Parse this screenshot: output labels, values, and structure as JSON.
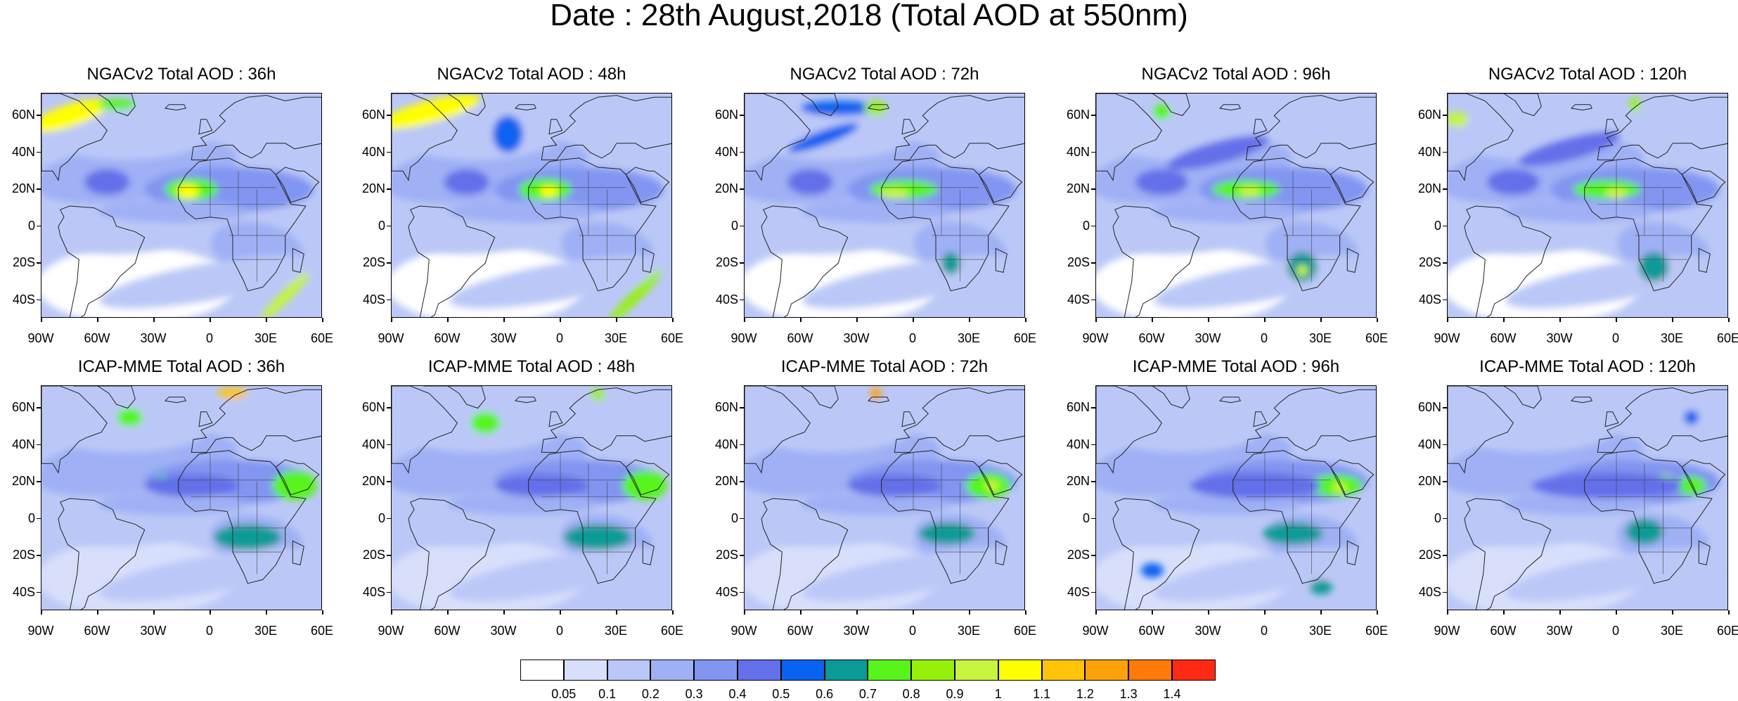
{
  "title": "Date : 28th August,2018 (Total AOD at 550nm)",
  "map_extent": {
    "lon_range": [
      -90,
      60
    ],
    "lat_range": [
      -50,
      72
    ]
  },
  "x_ticks": [
    {
      "lon": -90,
      "label": "90W"
    },
    {
      "lon": -60,
      "label": "60W"
    },
    {
      "lon": -30,
      "label": "30W"
    },
    {
      "lon": 0,
      "label": "0"
    },
    {
      "lon": 30,
      "label": "30E"
    },
    {
      "lon": 60,
      "label": "60E"
    }
  ],
  "y_ticks": [
    {
      "lat": 60,
      "label": "60N"
    },
    {
      "lat": 40,
      "label": "40N"
    },
    {
      "lat": 20,
      "label": "20N"
    },
    {
      "lat": 0,
      "label": "0"
    },
    {
      "lat": -20,
      "label": "20S"
    },
    {
      "lat": -40,
      "label": "40S"
    }
  ],
  "panels": [
    {
      "title": "NGACv2 Total AOD : 36h",
      "model": "NGACv2",
      "lead_hours": 36
    },
    {
      "title": "NGACv2 Total AOD : 48h",
      "model": "NGACv2",
      "lead_hours": 48
    },
    {
      "title": "NGACv2 Total AOD : 72h",
      "model": "NGACv2",
      "lead_hours": 72
    },
    {
      "title": "NGACv2 Total AOD : 96h",
      "model": "NGACv2",
      "lead_hours": 96
    },
    {
      "title": "NGACv2 Total AOD : 120h",
      "model": "NGACv2",
      "lead_hours": 120
    },
    {
      "title": "ICAP-MME Total AOD : 36h",
      "model": "ICAP-MME",
      "lead_hours": 36
    },
    {
      "title": "ICAP-MME Total AOD : 48h",
      "model": "ICAP-MME",
      "lead_hours": 48
    },
    {
      "title": "ICAP-MME Total AOD : 72h",
      "model": "ICAP-MME",
      "lead_hours": 72
    },
    {
      "title": "ICAP-MME Total AOD : 96h",
      "model": "ICAP-MME",
      "lead_hours": 96
    },
    {
      "title": "ICAP-MME Total AOD : 120h",
      "model": "ICAP-MME",
      "lead_hours": 120
    }
  ],
  "colorbar": {
    "colors": [
      "#ffffff",
      "#d7dffb",
      "#bbc8f7",
      "#9fb0f5",
      "#8195f1",
      "#6470e9",
      "#0a62f0",
      "#0a9b98",
      "#58f41c",
      "#96f10a",
      "#c6f440",
      "#ffff00",
      "#ffc408",
      "#fea10a",
      "#ff7a08",
      "#ff2a14"
    ],
    "labels": [
      "0.05",
      "0.1",
      "0.2",
      "0.3",
      "0.4",
      "0.5",
      "0.6",
      "0.7",
      "0.8",
      "0.9",
      "1",
      "1.1",
      "1.2",
      "1.3",
      "1.4"
    ]
  }
}
